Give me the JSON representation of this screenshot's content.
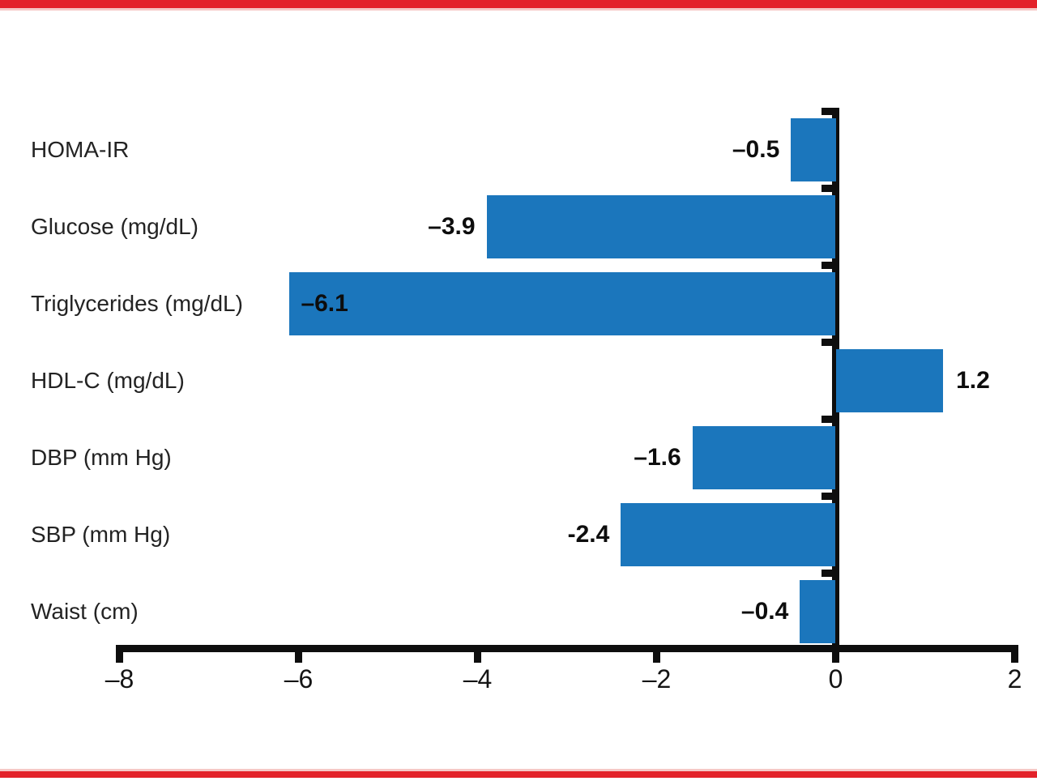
{
  "figure": {
    "accent_color": "#E3222A",
    "accent_fade_color": "#F5C8C6",
    "background": "#FFFFFF",
    "axis_color": "#0e0e0e"
  },
  "chart_data": {
    "type": "bar",
    "orientation": "horizontal",
    "title": "",
    "xlabel": "",
    "ylabel": "",
    "grid": false,
    "legend": null,
    "bar_color": "#1B76BC",
    "categories": [
      "HOMA-IR",
      "Glucose (mg/dL)",
      "Triglycerides (mg/dL)",
      "HDL-C (mg/dL)",
      "DBP (mm Hg)",
      "SBP (mm Hg)",
      "Waist (cm)"
    ],
    "values": [
      -0.5,
      -3.9,
      -6.1,
      1.2,
      -1.6,
      -2.4,
      -0.4
    ],
    "value_labels": [
      "–0.5",
      "–3.9",
      "–6.1",
      "1.2",
      "–1.6",
      "-2.4",
      "–0.4"
    ],
    "value_label_placement": [
      "outside",
      "outside",
      "inside",
      "outside",
      "outside",
      "outside",
      "outside"
    ],
    "xlim": [
      -8,
      2
    ],
    "xticks": [
      -8,
      -6,
      -4,
      -2,
      0,
      2
    ],
    "xtick_labels": [
      "–8",
      "–6",
      "–4",
      "–2",
      "0",
      "2"
    ]
  }
}
